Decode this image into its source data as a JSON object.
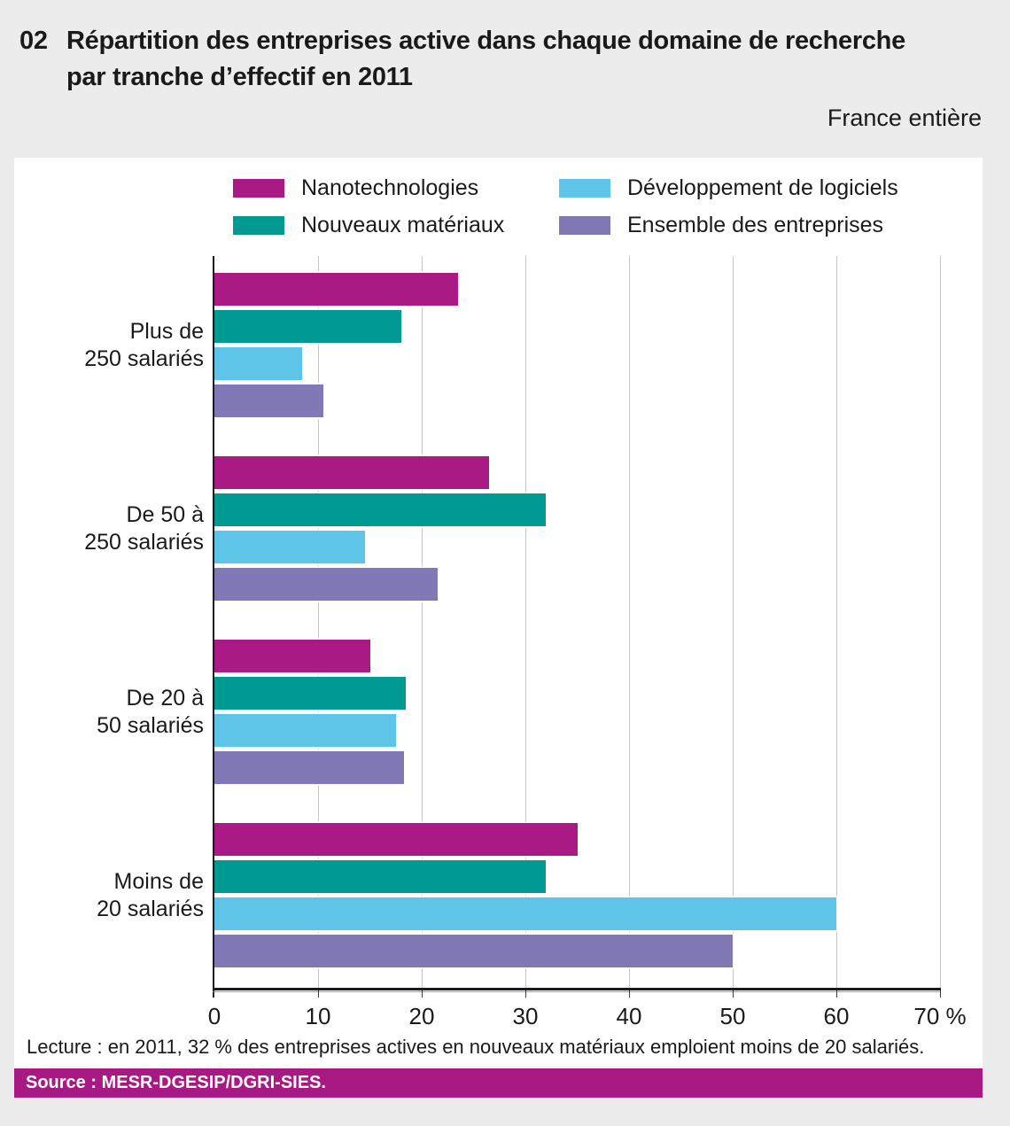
{
  "header": {
    "number": "02",
    "title_line1": "Répartition des entreprises active dans chaque domaine de recherche",
    "title_line2": "par tranche d’effectif en 2011",
    "subtitle": "France entière"
  },
  "colors": {
    "page_bg": "#ECECEC",
    "panel_bg": "#FFFFFF",
    "grid": "#C5C5C5",
    "axis": "#1A1A1A",
    "source_bar_bg": "#A81984",
    "text": "#1A1A1A"
  },
  "chart_data": {
    "type": "bar",
    "orientation": "horizontal",
    "title": "Répartition des entreprises active dans chaque domaine de recherche par tranche d’effectif en 2011",
    "subtitle": "France entière",
    "categories": [
      "Plus de 250 salariés",
      "De 50 à 250 salariés",
      "De 20 à 50 salariés",
      "Moins de 20 salariés"
    ],
    "category_lines": [
      [
        "Plus de",
        "250 salariés"
      ],
      [
        "De 50 à",
        "250 salariés"
      ],
      [
        "De 20 à",
        "50 salariés"
      ],
      [
        "Moins de",
        "20 salariés"
      ]
    ],
    "series": [
      {
        "name": "Nanotechnologies",
        "slug": "nanotechnologies",
        "color": "#A91A84",
        "values": [
          23.5,
          26.5,
          15,
          35
        ]
      },
      {
        "name": "Nouveaux matériaux",
        "slug": "nouveaux-materiaux",
        "color": "#009A93",
        "values": [
          18,
          32,
          18.5,
          32
        ]
      },
      {
        "name": "Développement de logiciels",
        "slug": "developpement-de-logiciels",
        "color": "#5EC5E9",
        "values": [
          8.5,
          14.5,
          17.5,
          60
        ]
      },
      {
        "name": "Ensemble des entreprises",
        "slug": "ensemble-des-entreprises",
        "color": "#8179B5",
        "values": [
          10.5,
          21.5,
          18.3,
          50
        ]
      }
    ],
    "xlabel": "",
    "x_unit": "%",
    "xlim": [
      0,
      70
    ],
    "x_ticks": [
      0,
      10,
      20,
      30,
      40,
      50,
      60,
      70
    ],
    "x_tick_labels": [
      "0",
      "10",
      "20",
      "30",
      "40",
      "50",
      "60",
      "70 %"
    ],
    "grid": true,
    "legend_position": "top",
    "legend_columns": [
      [
        0,
        1
      ],
      [
        2,
        3
      ]
    ]
  },
  "footer": {
    "lecture": "Lecture : en 2011, 32 % des entreprises actives en nouveaux matériaux emploient moins de 20 salariés.",
    "source": "Source : MESR-DGESIP/DGRI-SIES."
  }
}
